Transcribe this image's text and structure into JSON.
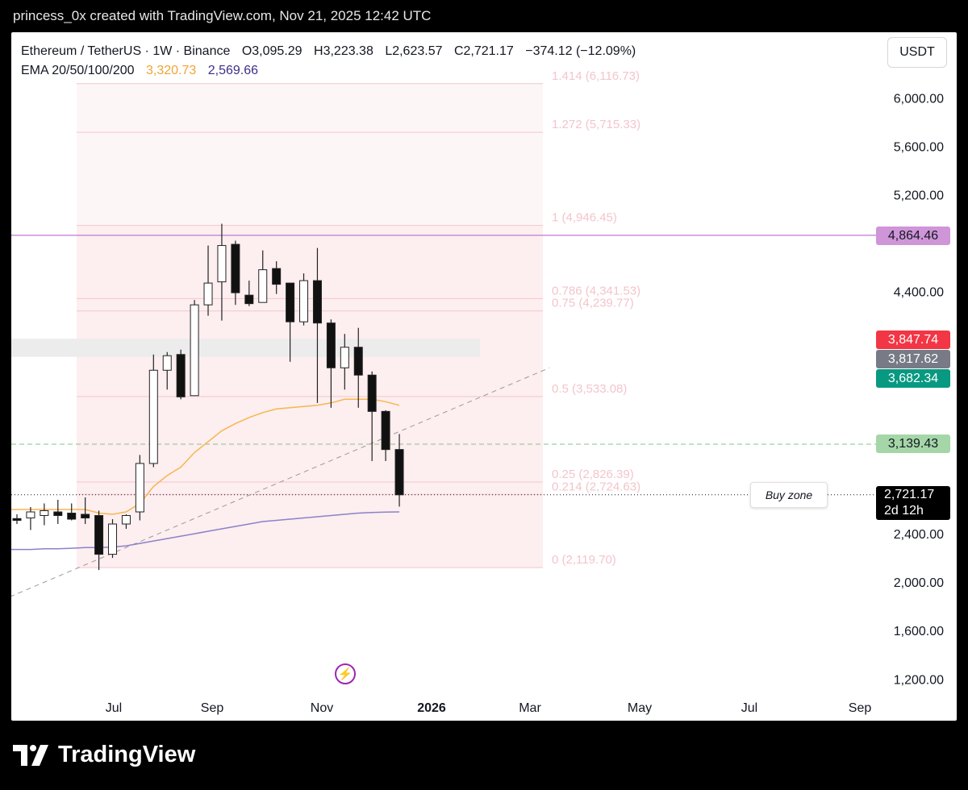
{
  "caption": "princess_0x created with TradingView.com, Nov 21, 2025 12:42 UTC",
  "legend": {
    "symbol": "Ethereum / TetherUS · 1W · Binance",
    "open": "O3,095.29",
    "high": "H3,223.38",
    "low": "L2,623.57",
    "close": "C2,721.17",
    "change": "−374.12 (−12.09%)",
    "ema_label": "EMA 20/50/100/200",
    "ema_value_1": "3,320.73",
    "ema_value_2": "2,569.66"
  },
  "currency": "USDT",
  "badges": {
    "violet": "4,864.46",
    "red": "3,847.74",
    "grey": "3,817.62",
    "teal": "3,682.34",
    "green": "3,139.43",
    "last_price": "2,721.17",
    "countdown": "2d 12h"
  },
  "annotation": "Buy zone",
  "brand": "TradingView",
  "colors": {
    "bull_body": "#ffffff",
    "bear_body": "#111111",
    "ema_fast": "#f5b74e",
    "ema_slow": "#8b82c7",
    "fib_line": "#f4c6cc",
    "fib_text": "#f3c5cb",
    "violet_line": "#c98fd6",
    "green_dashed": "#81c784"
  },
  "chart_data": {
    "type": "candlestick",
    "ylim": [
      1000,
      6400
    ],
    "y_ticks": [
      "6,000.00",
      "5,600.00",
      "5,200.00",
      "4,400.00",
      "2,400.00",
      "2,000.00",
      "1,600.00",
      "1,200.00"
    ],
    "x_ticks": [
      "Jul",
      "Sep",
      "Nov",
      "2026",
      "Mar",
      "May",
      "Jul",
      "Sep"
    ],
    "candles": [
      {
        "o": 2525,
        "h": 2560,
        "l": 2480,
        "c": 2510
      },
      {
        "o": 2530,
        "h": 2620,
        "l": 2430,
        "c": 2580
      },
      {
        "o": 2550,
        "h": 2650,
        "l": 2470,
        "c": 2590
      },
      {
        "o": 2580,
        "h": 2680,
        "l": 2480,
        "c": 2550
      },
      {
        "o": 2570,
        "h": 2650,
        "l": 2510,
        "c": 2520
      },
      {
        "o": 2560,
        "h": 2700,
        "l": 2480,
        "c": 2530
      },
      {
        "o": 2550,
        "h": 2590,
        "l": 2100,
        "c": 2230
      },
      {
        "o": 2230,
        "h": 2520,
        "l": 2200,
        "c": 2480
      },
      {
        "o": 2480,
        "h": 2560,
        "l": 2440,
        "c": 2550
      },
      {
        "o": 2580,
        "h": 3050,
        "l": 2510,
        "c": 2980
      },
      {
        "o": 2980,
        "h": 3880,
        "l": 2950,
        "c": 3750
      },
      {
        "o": 3750,
        "h": 3900,
        "l": 3590,
        "c": 3870
      },
      {
        "o": 3880,
        "h": 3920,
        "l": 3510,
        "c": 3530
      },
      {
        "o": 3540,
        "h": 4330,
        "l": 3540,
        "c": 4290
      },
      {
        "o": 4290,
        "h": 4780,
        "l": 4200,
        "c": 4470
      },
      {
        "o": 4480,
        "h": 4960,
        "l": 4160,
        "c": 4780
      },
      {
        "o": 4790,
        "h": 4820,
        "l": 4290,
        "c": 4390
      },
      {
        "o": 4370,
        "h": 4490,
        "l": 4280,
        "c": 4300
      },
      {
        "o": 4310,
        "h": 4740,
        "l": 4310,
        "c": 4580
      },
      {
        "o": 4590,
        "h": 4650,
        "l": 4380,
        "c": 4460
      },
      {
        "o": 4470,
        "h": 4470,
        "l": 3820,
        "c": 4150
      },
      {
        "o": 4150,
        "h": 4550,
        "l": 4120,
        "c": 4490
      },
      {
        "o": 4490,
        "h": 4760,
        "l": 3480,
        "c": 4140
      },
      {
        "o": 4140,
        "h": 4170,
        "l": 3440,
        "c": 3770
      },
      {
        "o": 3770,
        "h": 4050,
        "l": 3590,
        "c": 3940
      },
      {
        "o": 3940,
        "h": 4100,
        "l": 3440,
        "c": 3710
      },
      {
        "o": 3710,
        "h": 3740,
        "l": 3000,
        "c": 3410
      },
      {
        "o": 3410,
        "h": 3420,
        "l": 3000,
        "c": 3095
      },
      {
        "o": 3095.29,
        "h": 3223.38,
        "l": 2623.57,
        "c": 2721.17
      }
    ],
    "ema_fast": [
      2600,
      2600,
      2600,
      2600,
      2600,
      2600,
      2570,
      2560,
      2580,
      2650,
      2790,
      2880,
      2950,
      3070,
      3160,
      3250,
      3310,
      3360,
      3400,
      3430,
      3440,
      3450,
      3460,
      3480,
      3510,
      3510,
      3510,
      3490,
      3460
    ],
    "ema_slow": [
      2270,
      2270,
      2275,
      2275,
      2280,
      2285,
      2285,
      2290,
      2300,
      2320,
      2340,
      2360,
      2380,
      2400,
      2420,
      2440,
      2460,
      2480,
      2500,
      2510,
      2520,
      2530,
      2540,
      2550,
      2560,
      2570,
      2575,
      2578,
      2580
    ],
    "fib_levels": [
      {
        "label": "1.414 (6,116.73)",
        "value": 6116.73
      },
      {
        "label": "1.272 (5,715.33)",
        "value": 5715.33
      },
      {
        "label": "1 (4,946.45)",
        "value": 4946.45
      },
      {
        "label": "0.786 (4,341.53)",
        "value": 4341.53
      },
      {
        "label": "0.75 (4,239.77)",
        "value": 4239.77
      },
      {
        "label": "0.5 (3,533.08)",
        "value": 3533.08
      },
      {
        "label": "0.25 (2,826.39)",
        "value": 2826.39
      },
      {
        "label": "0.214 (2,724.63)",
        "value": 2724.63
      },
      {
        "label": "0 (2,119.70)",
        "value": 2119.7
      }
    ],
    "horizontal_lines": {
      "violet": 4864.46,
      "green_dashed": 3139.43,
      "last_price_dotted": 2721.17
    },
    "grey_zone": [
      3860,
      4010
    ],
    "trendline": [
      {
        "bar": -5.3,
        "price": 1650
      },
      {
        "bar": 39,
        "price": 3770
      }
    ]
  }
}
